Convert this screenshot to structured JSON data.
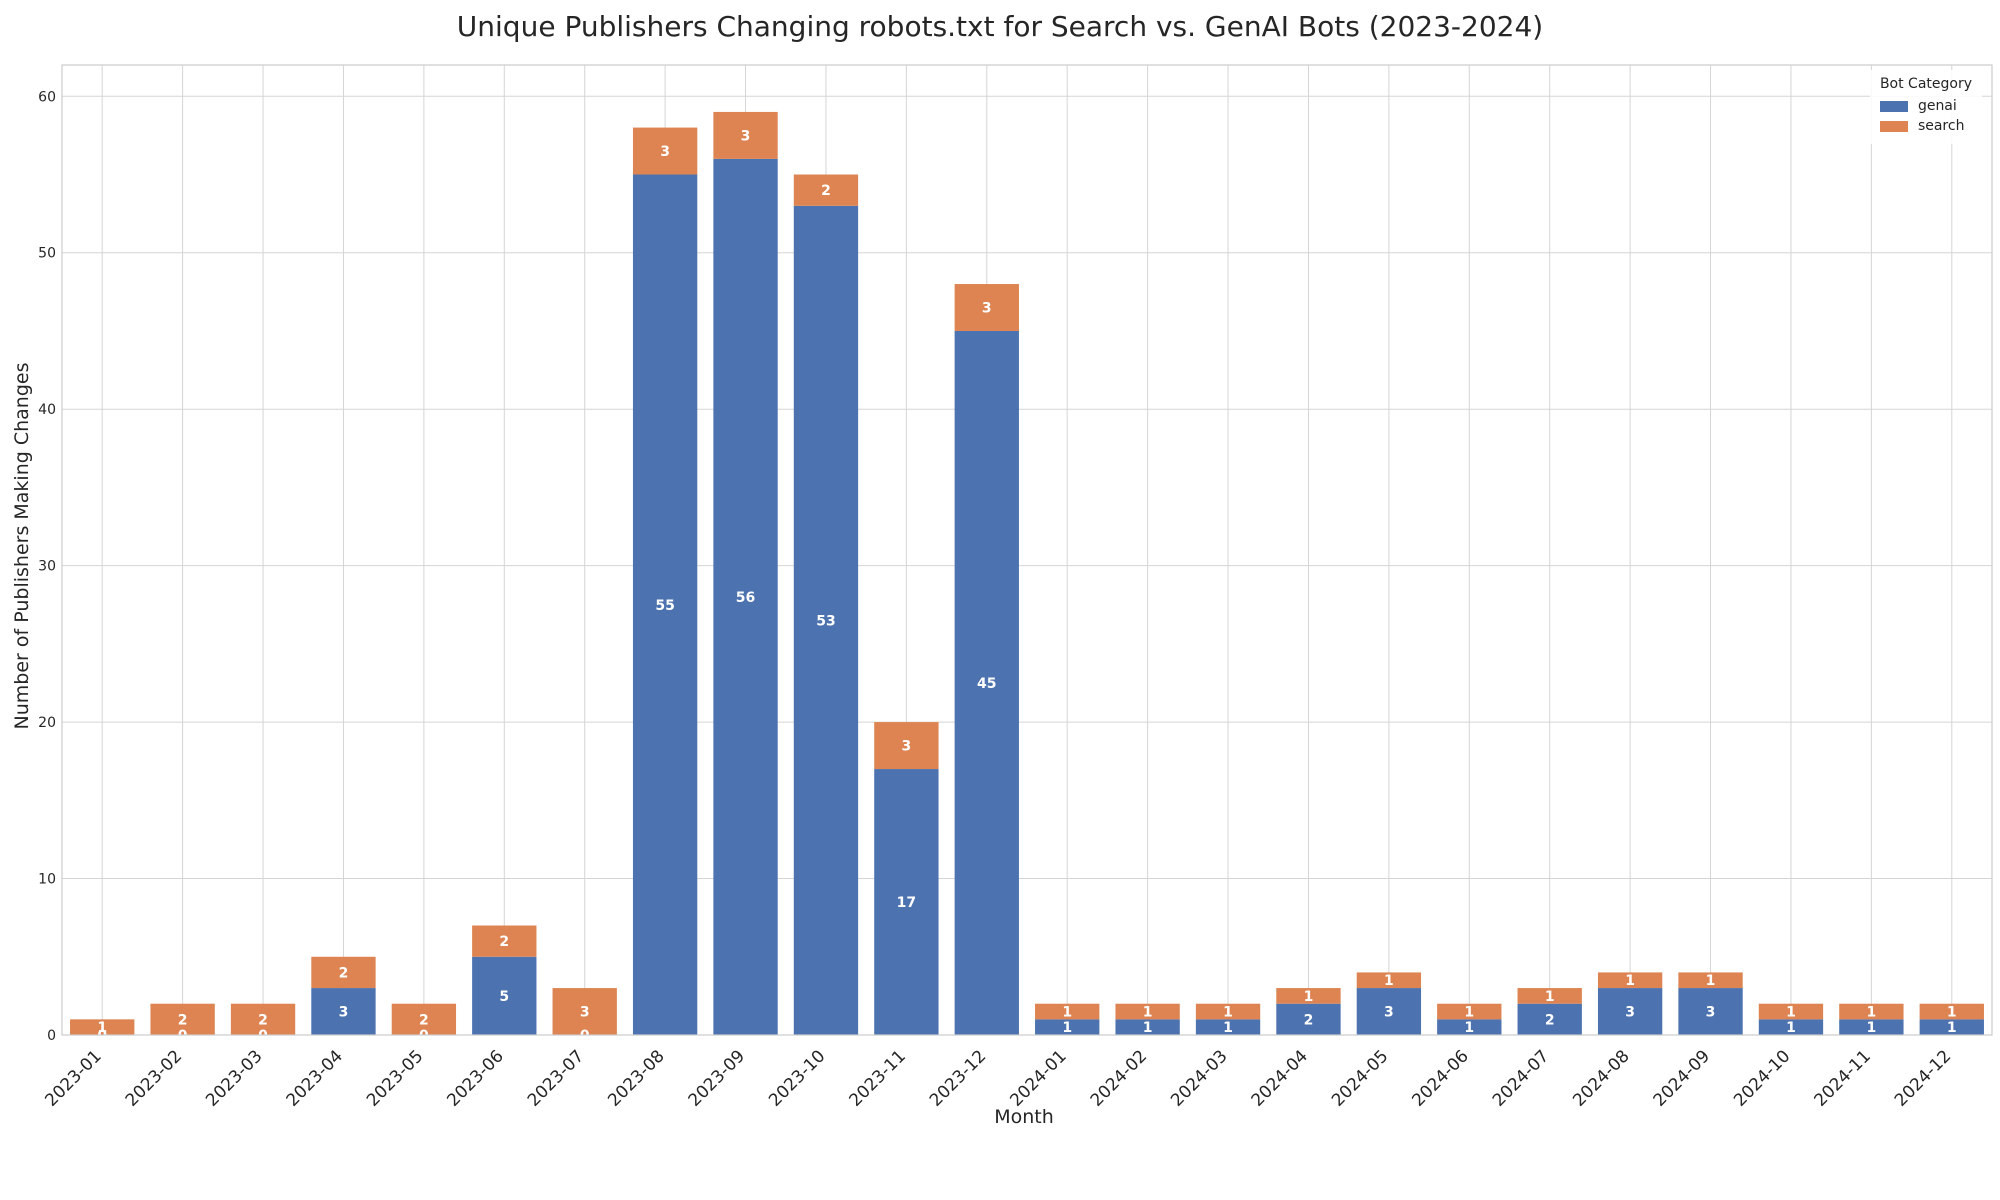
{
  "chart_data": {
    "type": "bar",
    "stacked": true,
    "title": "Unique Publishers Changing robots.txt for Search vs. GenAI Bots (2023-2024)",
    "xlabel": "Month",
    "ylabel": "Number of Publishers Making Changes",
    "ylim": [
      0,
      62
    ],
    "yticks": [
      0,
      10,
      20,
      30,
      40,
      50,
      60
    ],
    "grid": true,
    "legend_title": "Bot Category",
    "legend_position": "top-right",
    "categories": [
      "2023-01",
      "2023-02",
      "2023-03",
      "2023-04",
      "2023-05",
      "2023-06",
      "2023-07",
      "2023-08",
      "2023-09",
      "2023-10",
      "2023-11",
      "2023-12",
      "2024-01",
      "2024-02",
      "2024-03",
      "2024-04",
      "2024-05",
      "2024-06",
      "2024-07",
      "2024-08",
      "2024-09",
      "2024-10",
      "2024-11",
      "2024-12"
    ],
    "series": [
      {
        "name": "genai",
        "color": "#4c72b0",
        "values": [
          0,
          0,
          0,
          3,
          0,
          5,
          0,
          55,
          56,
          53,
          17,
          45,
          1,
          1,
          1,
          2,
          3,
          1,
          2,
          3,
          3,
          1,
          1,
          1
        ]
      },
      {
        "name": "search",
        "color": "#dd8452",
        "values": [
          1,
          2,
          2,
          2,
          2,
          2,
          3,
          3,
          3,
          2,
          3,
          3,
          1,
          1,
          1,
          1,
          1,
          1,
          1,
          1,
          1,
          1,
          1,
          1
        ]
      }
    ]
  }
}
